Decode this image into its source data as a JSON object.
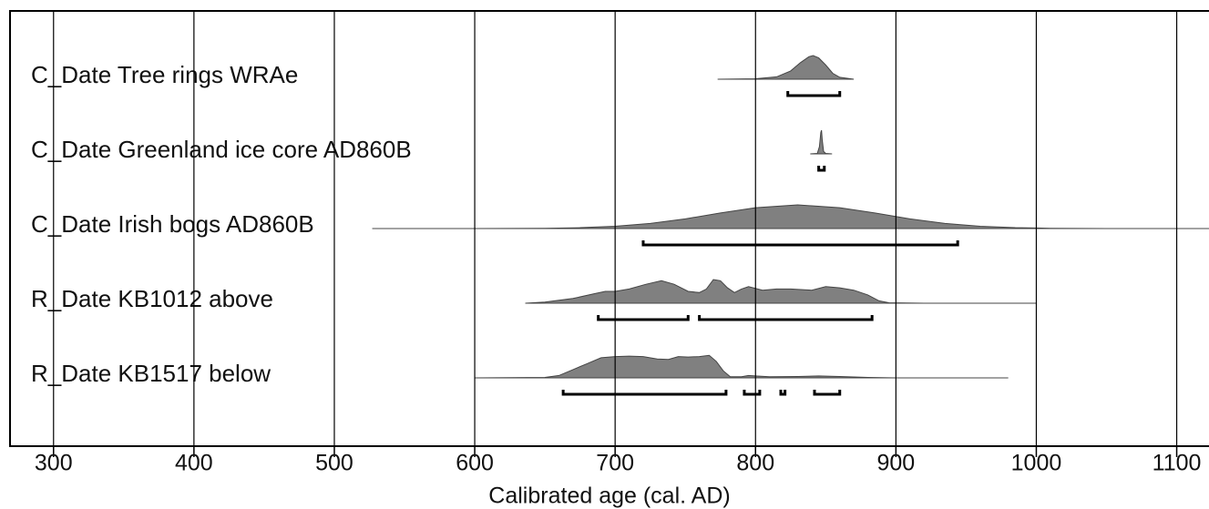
{
  "chart_data": {
    "type": "range-plot",
    "x_label": "Calibrated age (cal. AD)",
    "xlim": [
      269,
      1123
    ],
    "xticks": [
      300,
      400,
      500,
      600,
      700,
      800,
      900,
      1000,
      1100
    ],
    "grid": true,
    "color": "#808080",
    "series": [
      {
        "name": "C_Date Tree rings WRAe",
        "x": [
          773,
          800,
          815,
          825,
          832,
          838,
          841,
          845,
          850,
          855,
          860,
          870
        ],
        "values": [
          0,
          0.02,
          0.1,
          0.35,
          0.7,
          0.95,
          1,
          0.9,
          0.6,
          0.25,
          0.08,
          0
        ],
        "ranges": [
          [
            823,
            860
          ]
        ]
      },
      {
        "name": "C_Date Greenland ice core AD860B",
        "x": [
          839,
          844,
          845.5,
          846.5,
          847,
          847.5,
          848.5,
          850,
          854.5
        ],
        "values": [
          0,
          0.02,
          0.3,
          0.9,
          1,
          0.6,
          0.1,
          0.02,
          0
        ],
        "ranges": [
          [
            845,
            849
          ]
        ]
      },
      {
        "name": "C_Date Irish bogs AD860B",
        "x": [
          527,
          600,
          650,
          675,
          700,
          725,
          750,
          775,
          800,
          830,
          860,
          885,
          910,
          935,
          960,
          985,
          1010,
          1050,
          1123
        ],
        "values": [
          0,
          0.001,
          0.011,
          0.036,
          0.096,
          0.216,
          0.41,
          0.657,
          0.88,
          1,
          0.88,
          0.657,
          0.41,
          0.216,
          0.096,
          0.036,
          0.011,
          0.001,
          0
        ],
        "ranges": [
          [
            720,
            944
          ]
        ]
      },
      {
        "name": "R_Date KB1012 above",
        "x": [
          636,
          650,
          670,
          685,
          693,
          700,
          710,
          722,
          733,
          742,
          752,
          760,
          765,
          770,
          775,
          780,
          785,
          790,
          795,
          805,
          815,
          825,
          840,
          850,
          860,
          870,
          880,
          888,
          895,
          920,
          1000
        ],
        "values": [
          0,
          0.05,
          0.2,
          0.4,
          0.5,
          0.5,
          0.6,
          0.8,
          0.95,
          0.8,
          0.5,
          0.45,
          0.6,
          1,
          0.95,
          0.65,
          0.45,
          0.6,
          0.7,
          0.55,
          0.6,
          0.6,
          0.55,
          0.7,
          0.65,
          0.55,
          0.35,
          0.1,
          0.02,
          0,
          0
        ],
        "ranges": [
          [
            688,
            752
          ],
          [
            760,
            883
          ]
        ]
      },
      {
        "name": "R_Date KB1517 below",
        "x": [
          600,
          650,
          660,
          670,
          680,
          690,
          700,
          710,
          720,
          730,
          738,
          745,
          752,
          760,
          767,
          772,
          777,
          782,
          790,
          795,
          800,
          810,
          830,
          845,
          860,
          880,
          900,
          980
        ],
        "values": [
          0,
          0.02,
          0.1,
          0.35,
          0.6,
          0.85,
          0.9,
          0.92,
          0.9,
          0.8,
          0.78,
          0.9,
          0.88,
          0.9,
          0.95,
          0.7,
          0.3,
          0.05,
          0.05,
          0.1,
          0.08,
          0.05,
          0.06,
          0.08,
          0.06,
          0.02,
          0,
          0
        ],
        "ranges": [
          [
            663,
            779
          ],
          [
            792,
            803
          ],
          [
            818,
            821
          ],
          [
            842,
            860
          ]
        ]
      }
    ]
  }
}
